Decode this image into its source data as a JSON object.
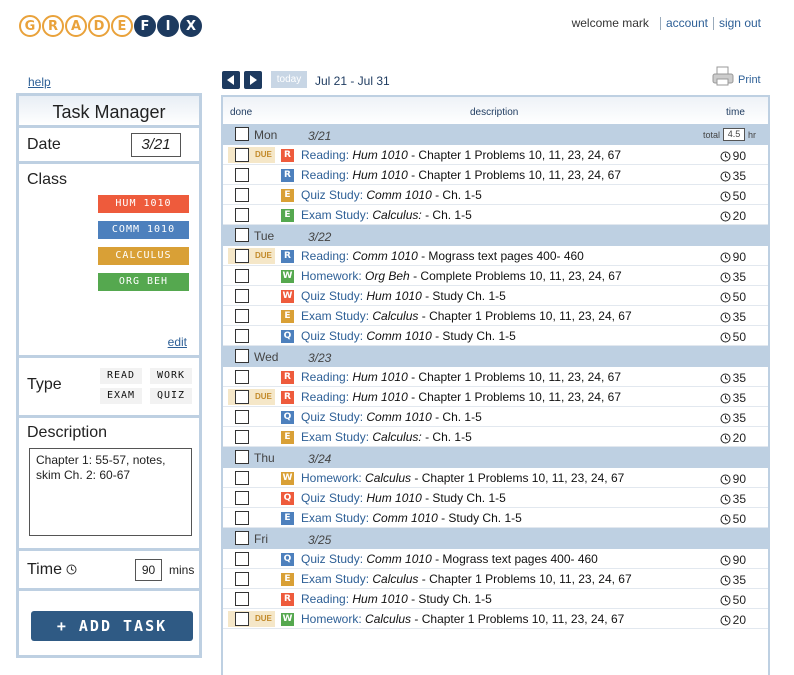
{
  "logo": {
    "letters_a": [
      "G",
      "R",
      "A",
      "D",
      "E"
    ],
    "letters_b": [
      "F",
      "I",
      "X"
    ]
  },
  "header": {
    "welcome": "welcome mark",
    "account": "account",
    "signout": "sign out",
    "help": "help"
  },
  "toolbar": {
    "today": "today",
    "range": "Jul 21 - Jul 31",
    "print": "Print"
  },
  "task_manager": {
    "title": "Task Manager",
    "date_label": "Date",
    "date_value": "3/21",
    "class_label": "Class",
    "classes": [
      {
        "label": "HUM 1010",
        "color": "#ee5b3c"
      },
      {
        "label": "COMM 1010",
        "color": "#4d80bd"
      },
      {
        "label": "CALCULUS",
        "color": "#d9a036"
      },
      {
        "label": "ORG BEH",
        "color": "#55a84f"
      }
    ],
    "edit": "edit",
    "type_label": "Type",
    "types": [
      "READ",
      "WORK",
      "EXAM",
      "QUIZ"
    ],
    "desc_label": "Description",
    "desc_value": "Chapter 1: 55-57, notes, skim Ch. 2: 60-67",
    "time_label": "Time",
    "time_value": "90",
    "time_unit": "mins",
    "add_button": "+ ADD TASK"
  },
  "schedule": {
    "headers": {
      "done": "done",
      "description": "description",
      "time": "time"
    },
    "total_label": "total",
    "total_value": "4.5",
    "total_unit": "hr",
    "type_colors": {
      "R": "#ee5b3c",
      "E": "#d9a036",
      "W": "#d9a036",
      "Q": "#4d80bd",
      "E2": "#55a84f"
    },
    "due_label": "DUE",
    "days": [
      {
        "name": "Mon",
        "date": "3/21",
        "rows": [
          {
            "due": true,
            "icon": "R",
            "color": "#ee5b3c",
            "kind": "Reading:",
            "course": "Hum 1010",
            "text": " - Chapter 1 Problems 10, 11, 23, 24, 67",
            "time": "90"
          },
          {
            "due": false,
            "icon": "R",
            "color": "#4d80bd",
            "kind": "Reading:",
            "course": "Hum 1010",
            "text": " - Chapter 1 Problems 10, 11, 23, 24, 67",
            "time": "35"
          },
          {
            "due": false,
            "icon": "E",
            "color": "#d9a036",
            "kind": "Quiz Study:",
            "course": "Comm 1010",
            "text": " - Ch. 1-5",
            "time": "50"
          },
          {
            "due": false,
            "icon": "E",
            "color": "#55a84f",
            "kind": "Exam Study:",
            "course": "Calculus:",
            "text": " - Ch. 1-5",
            "time": "20"
          }
        ]
      },
      {
        "name": "Tue",
        "date": "3/22",
        "rows": [
          {
            "due": true,
            "icon": "R",
            "color": "#4d80bd",
            "kind": "Reading:",
            "course": "Comm 1010",
            "text": " - Mograss text pages 400- 460",
            "time": "90"
          },
          {
            "due": false,
            "icon": "W",
            "color": "#55a84f",
            "kind": "Homework:",
            "course": "Org Beh",
            "text": " - Complete Problems 10, 11, 23, 24, 67",
            "time": "35"
          },
          {
            "due": false,
            "icon": "W",
            "color": "#ee5b3c",
            "kind": "Quiz Study:",
            "course": "Hum 1010",
            "text": " - Study Ch. 1-5",
            "time": "50"
          },
          {
            "due": false,
            "icon": "E",
            "color": "#d9a036",
            "kind": "Exam Study:",
            "course": "Calculus",
            "text": " - Chapter 1 Problems 10, 11, 23, 24, 67",
            "time": "35"
          },
          {
            "due": false,
            "icon": "Q",
            "color": "#4d80bd",
            "kind": "Quiz Study:",
            "course": "Comm 1010",
            "text": " - Study Ch. 1-5",
            "time": "50"
          }
        ]
      },
      {
        "name": "Wed",
        "date": "3/23",
        "rows": [
          {
            "due": false,
            "icon": "R",
            "color": "#ee5b3c",
            "kind": "Reading:",
            "course": "Hum 1010",
            "text": " - Chapter 1 Problems 10, 11, 23, 24, 67",
            "time": "35"
          },
          {
            "due": true,
            "icon": "R",
            "color": "#ee5b3c",
            "kind": "Reading:",
            "course": "Hum 1010",
            "text": " - Chapter 1 Problems 10, 11, 23, 24, 67",
            "time": "35"
          },
          {
            "due": false,
            "icon": "Q",
            "color": "#4d80bd",
            "kind": "Quiz Study:",
            "course": "Comm 1010",
            "text": " - Ch. 1-5",
            "time": "35"
          },
          {
            "due": false,
            "icon": "E",
            "color": "#d9a036",
            "kind": "Exam Study:",
            "course": "Calculus:",
            "text": " - Ch. 1-5",
            "time": "20"
          }
        ]
      },
      {
        "name": "Thu",
        "date": "3/24",
        "rows": [
          {
            "due": false,
            "icon": "W",
            "color": "#d9a036",
            "kind": "Homework:",
            "course": "Calculus",
            "text": " - Chapter 1 Problems 10, 11, 23, 24, 67",
            "time": "90"
          },
          {
            "due": false,
            "icon": "Q",
            "color": "#ee5b3c",
            "kind": "Quiz Study:",
            "course": "Hum 1010",
            "text": " - Study Ch. 1-5",
            "time": "35"
          },
          {
            "due": false,
            "icon": "E",
            "color": "#4d80bd",
            "kind": "Exam Study:",
            "course": "Comm 1010",
            "text": " - Study Ch. 1-5",
            "time": "50"
          }
        ]
      },
      {
        "name": "Fri",
        "date": "3/25",
        "rows": [
          {
            "due": false,
            "icon": "Q",
            "color": "#4d80bd",
            "kind": "Quiz Study:",
            "course": "Comm 1010",
            "text": " - Mograss text pages 400- 460",
            "time": "90"
          },
          {
            "due": false,
            "icon": "E",
            "color": "#d9a036",
            "kind": "Exam Study:",
            "course": "Calculus",
            "text": " - Chapter 1 Problems 10, 11, 23, 24, 67",
            "time": "35"
          },
          {
            "due": false,
            "icon": "R",
            "color": "#ee5b3c",
            "kind": "Reading:",
            "course": "Hum 1010",
            "text": " - Study Ch. 1-5",
            "time": "50"
          },
          {
            "due": true,
            "icon": "W",
            "color": "#55a84f",
            "kind": "Homework:",
            "course": "Calculus",
            "text": " - Chapter 1 Problems 10, 11, 23, 24, 67",
            "time": "20"
          }
        ]
      }
    ]
  }
}
